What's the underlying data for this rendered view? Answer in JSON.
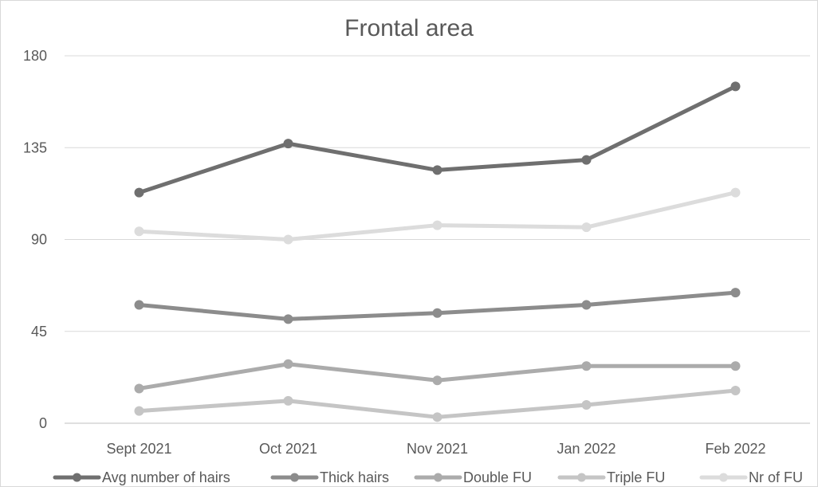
{
  "chart_data": {
    "type": "line",
    "title": "Frontal area",
    "xlabel": "",
    "ylabel": "",
    "categories": [
      "Sept 2021",
      "Oct 2021",
      "Nov 2021",
      "Jan 2022",
      "Feb 2022"
    ],
    "ylim": [
      0,
      180
    ],
    "yticks": [
      0,
      45,
      90,
      135,
      180
    ],
    "grid": true,
    "legend_position": "bottom",
    "series": [
      {
        "name": "Avg number of hairs",
        "color": "#6f6f6f",
        "values": [
          113,
          137,
          124,
          129,
          165
        ]
      },
      {
        "name": "Thick hairs",
        "color": "#8c8c8c",
        "values": [
          58,
          51,
          54,
          58,
          64
        ]
      },
      {
        "name": "Double FU",
        "color": "#ababab",
        "values": [
          17,
          29,
          21,
          28,
          28
        ]
      },
      {
        "name": "Triple FU",
        "color": "#c5c5c5",
        "values": [
          6,
          11,
          3,
          9,
          16
        ]
      },
      {
        "name": "Nr of FU",
        "color": "#dcdcdc",
        "values": [
          94,
          90,
          97,
          96,
          113
        ]
      }
    ]
  }
}
